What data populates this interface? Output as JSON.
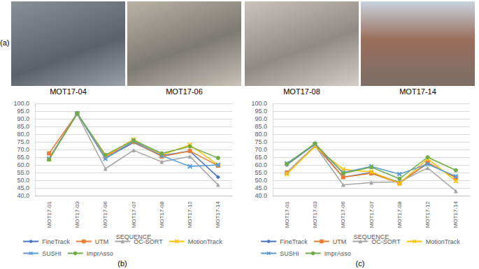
{
  "panel_a": {
    "label": "(a)",
    "captions": [
      "MOT17-04",
      "MOT17-06",
      "MOT17-08",
      "MOT17-14"
    ]
  },
  "chart_data": [
    {
      "type": "line",
      "annotations": [
        "(b)"
      ],
      "x_label": "SEQUENCE",
      "categories": [
        "MOT17-01",
        "MOT17-03",
        "MOT17-06",
        "MOT17-07",
        "MOT17-08",
        "MOT17-12",
        "MOT17-14"
      ],
      "ylim": [
        40,
        100
      ],
      "yticks": [
        {
          "value": 40,
          "label": "40.0"
        },
        {
          "value": 45,
          "label": "45.0"
        },
        {
          "value": 50,
          "label": "50.0"
        },
        {
          "value": 55,
          "label": "55.0"
        },
        {
          "value": 60,
          "label": "60.0"
        },
        {
          "value": 65,
          "label": "65.0"
        },
        {
          "value": 70,
          "label": "70.0"
        },
        {
          "value": 75,
          "label": "75.0"
        },
        {
          "value": 80,
          "label": "80.0"
        },
        {
          "value": 85,
          "label": "85.0"
        },
        {
          "value": 90,
          "label": "90.0"
        },
        {
          "value": 95,
          "label": "95.0"
        },
        {
          "value": 100,
          "label": "100.0"
        }
      ],
      "grid": true,
      "legend": "bottom",
      "series": [
        {
          "name": "FineTrack",
          "color": "#4472c4",
          "marker": "diamond",
          "values": [
            64,
            93.7,
            64.5,
            74.5,
            66,
            69,
            52
          ]
        },
        {
          "name": "UTM",
          "color": "#ed7d31",
          "marker": "square",
          "values": [
            67.5,
            93.5,
            65.5,
            75,
            65.5,
            69,
            59.5
          ]
        },
        {
          "name": "OC-SORT",
          "color": "#a5a5a5",
          "marker": "triangle",
          "values": [
            64,
            93,
            57.5,
            69.5,
            62,
            65.5,
            47
          ]
        },
        {
          "name": "MotionTrack",
          "color": "#ffc000",
          "marker": "x",
          "values": [
            63.5,
            93.5,
            66,
            76.5,
            66.5,
            73,
            60
          ]
        },
        {
          "name": "SUSHI",
          "color": "#5b9bd5",
          "marker": "x",
          "values": [
            64,
            93.5,
            64,
            75.5,
            66,
            59,
            60
          ]
        },
        {
          "name": "ImprAsso",
          "color": "#70ad47",
          "marker": "circle",
          "values": [
            63.5,
            93.5,
            66.5,
            76,
            67.5,
            72,
            64.5
          ]
        }
      ]
    },
    {
      "type": "line",
      "annotations": [
        "(c)"
      ],
      "x_label": "SEQUENCE",
      "categories": [
        "MOT17-01",
        "MOT17-03",
        "MOT17-06",
        "MOT17-07",
        "MOT17-08",
        "MOT17-12",
        "MOT17-14"
      ],
      "ylim": [
        40,
        100
      ],
      "yticks": [
        {
          "value": 40,
          "label": "40.0"
        },
        {
          "value": 45,
          "label": "45.0"
        },
        {
          "value": 50,
          "label": "50.0"
        },
        {
          "value": 55,
          "label": "55.0"
        },
        {
          "value": 60,
          "label": "60.0"
        },
        {
          "value": 65,
          "label": "65.0"
        },
        {
          "value": 70,
          "label": "70.0"
        },
        {
          "value": 75,
          "label": "75.0"
        },
        {
          "value": 80,
          "label": "80.0"
        },
        {
          "value": 85,
          "label": "85.0"
        },
        {
          "value": 90,
          "label": "90.0"
        },
        {
          "value": 95,
          "label": "95.0"
        },
        {
          "value": 100,
          "label": "100.0"
        }
      ],
      "grid": true,
      "legend": "bottom",
      "series": [
        {
          "name": "FineTrack",
          "color": "#4472c4",
          "marker": "diamond",
          "values": [
            60,
            73.5,
            52,
            55,
            48.5,
            61,
            52
          ]
        },
        {
          "name": "UTM",
          "color": "#ed7d31",
          "marker": "square",
          "values": [
            55,
            72.5,
            52,
            54.5,
            48,
            61.5,
            51.5
          ]
        },
        {
          "name": "OC-SORT",
          "color": "#a5a5a5",
          "marker": "triangle",
          "values": [
            55,
            72.5,
            47,
            48.5,
            49,
            58,
            43
          ]
        },
        {
          "name": "MotionTrack",
          "color": "#ffc000",
          "marker": "x",
          "values": [
            54,
            72,
            57,
            55.5,
            48,
            64,
            49.5
          ]
        },
        {
          "name": "SUSHI",
          "color": "#5b9bd5",
          "marker": "x",
          "values": [
            61,
            73.5,
            55,
            59,
            54,
            60.5,
            52.5
          ]
        },
        {
          "name": "ImprAsso",
          "color": "#70ad47",
          "marker": "circle",
          "values": [
            60.5,
            74,
            54.5,
            58.5,
            51,
            65,
            56.5
          ]
        }
      ]
    }
  ]
}
